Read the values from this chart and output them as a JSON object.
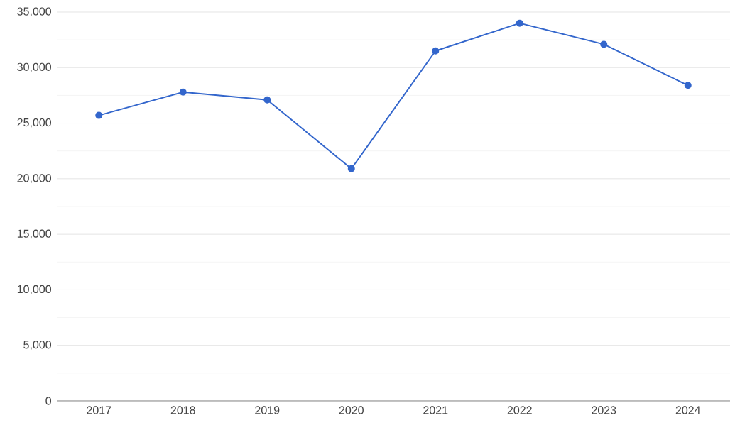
{
  "chart_data": {
    "type": "line",
    "categories": [
      "2017",
      "2018",
      "2019",
      "2020",
      "2021",
      "2022",
      "2023",
      "2024"
    ],
    "series": [
      {
        "color": "#3366cc",
        "values": [
          25700,
          27800,
          27100,
          20900,
          31500,
          34000,
          32100,
          28400
        ]
      }
    ],
    "ylim": [
      0,
      35000
    ],
    "yticks": [
      0,
      {
        "value": 5000,
        "label": "5,000"
      },
      {
        "value": 10000,
        "label": "10,000"
      },
      {
        "value": 15000,
        "label": "15,000"
      },
      {
        "value": 20000,
        "label": "20,000"
      },
      {
        "value": 25000,
        "label": "25,000"
      },
      {
        "value": 30000,
        "label": "30,000"
      },
      {
        "value": 35000,
        "label": "35,000"
      }
    ],
    "grid": "y",
    "marker": "circle",
    "line_style": "solid"
  }
}
